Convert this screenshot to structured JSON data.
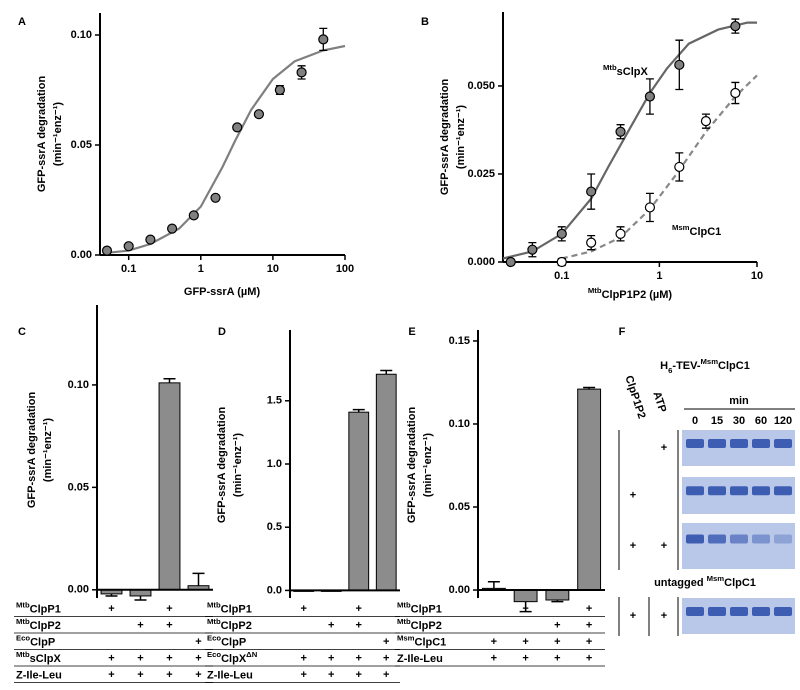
{
  "chart_data": [
    {
      "panel": "A",
      "type": "scatter",
      "xscale": "log",
      "xlabel": "GFP-ssrA (µM)",
      "ylabel": "GFP-ssrA degradation",
      "ylabel_units": "(min⁻¹enz⁻¹)",
      "xlim": [
        0.04,
        100
      ],
      "xticks": [
        0.1,
        1,
        10,
        100
      ],
      "ylim": [
        0,
        0.11
      ],
      "yticks": [
        {
          "value": 0,
          "label": "0.00"
        },
        {
          "value": 0.05,
          "label": "0.05"
        },
        {
          "value": 0.1,
          "label": "0.10"
        }
      ],
      "series": [
        {
          "color": "#808080",
          "x": [
            0.05,
            0.1,
            0.2,
            0.4,
            0.8,
            1.6,
            3.2,
            6.4,
            12.5,
            25,
            50
          ],
          "values": [
            0.002,
            0.004,
            0.007,
            0.012,
            0.018,
            0.026,
            0.058,
            0.064,
            0.075,
            0.083,
            0.098
          ],
          "errors": [
            0,
            0,
            0,
            0,
            0,
            0,
            0,
            0,
            0.002,
            0.003,
            0.005
          ],
          "fit": {
            "color": "#7f7f7f",
            "line_style": "solid",
            "x": [
              0.05,
              0.1,
              0.2,
              0.5,
              1,
              2,
              3,
              5,
              10,
              20,
              50,
              100
            ],
            "y": [
              0.001,
              0.002,
              0.005,
              0.012,
              0.022,
              0.04,
              0.052,
              0.066,
              0.08,
              0.088,
              0.093,
              0.095
            ]
          }
        }
      ]
    },
    {
      "panel": "B",
      "type": "scatter",
      "xscale": "log",
      "xlabel_super": "Mtb",
      "xlabel": "ClpP1P2 (µM)",
      "ylabel": "GFP-ssrA degradation",
      "ylabel_units": "(min⁻¹enz⁻¹)",
      "xlim": [
        0.025,
        10
      ],
      "xticks": [
        0.1,
        1,
        10
      ],
      "ylim": [
        0,
        0.071
      ],
      "yticks": [
        {
          "value": 0,
          "label": "0.000"
        },
        {
          "value": 0.025,
          "label": "0.025"
        },
        {
          "value": 0.05,
          "label": "0.050"
        }
      ],
      "series": [
        {
          "name_super": "Mtb",
          "name": "sClpX",
          "color": "#808080",
          "x": [
            0.03,
            0.05,
            0.1,
            0.2,
            0.4,
            0.8,
            1.6,
            6
          ],
          "values": [
            0,
            0.0035,
            0.008,
            0.02,
            0.037,
            0.047,
            0.056,
            0.067
          ],
          "errors": [
            0,
            0.002,
            0.002,
            0.005,
            0.002,
            0.005,
            0.007,
            0.002
          ],
          "fit": {
            "color": "#666666",
            "line_style": "solid",
            "x": [
              0.025,
              0.05,
              0.1,
              0.2,
              0.3,
              0.5,
              0.8,
              1.2,
              2,
              4,
              8,
              10
            ],
            "y": [
              0.001,
              0.003,
              0.008,
              0.018,
              0.027,
              0.038,
              0.048,
              0.055,
              0.062,
              0.066,
              0.068,
              0.068
            ]
          }
        },
        {
          "name_super": "Msm",
          "name": "ClpC1",
          "color": "#ffffff",
          "x": [
            0.1,
            0.2,
            0.4,
            0.8,
            1.6,
            3,
            6
          ],
          "values": [
            0,
            0.0055,
            0.008,
            0.0155,
            0.027,
            0.04,
            0.048
          ],
          "errors": [
            0.001,
            0.002,
            0.002,
            0.004,
            0.004,
            0.002,
            0.003
          ],
          "fit": {
            "color": "#888888",
            "line_style": "dashed",
            "x": [
              0.1,
              0.2,
              0.4,
              0.8,
              1.5,
              3,
              6,
              10
            ],
            "y": [
              0.001,
              0.003,
              0.007,
              0.015,
              0.025,
              0.037,
              0.047,
              0.053
            ]
          }
        }
      ]
    },
    {
      "panel": "C",
      "type": "bar",
      "color": "#8c8c8c",
      "ylabel": "GFP-ssrA degradation",
      "ylabel_units": "(min⁻¹enz⁻¹)",
      "ylim": [
        -0.004,
        0.139
      ],
      "yticks": [
        {
          "value": 0,
          "label": "0.00"
        },
        {
          "value": 0.05,
          "label": "0.05"
        },
        {
          "value": 0.1,
          "label": "0.10"
        }
      ],
      "values": [
        -0.002,
        -0.003,
        0.101,
        0.002
      ],
      "errors": [
        0.001,
        0.002,
        0.002,
        0.006
      ],
      "rows": [
        {
          "super": "Mtb",
          "label": "ClpP1",
          "cells": [
            "+",
            null,
            "+",
            null
          ]
        },
        {
          "super": "Mtb",
          "label": "ClpP2",
          "cells": [
            null,
            "+",
            "+",
            null
          ]
        },
        {
          "super": "Eco",
          "label": "ClpP",
          "cells": [
            null,
            null,
            null,
            "+"
          ]
        },
        {
          "super": "Mtb",
          "label": "sClpX",
          "cells": [
            "+",
            "+",
            "+",
            "+"
          ]
        },
        {
          "label": "Z-Ile-Leu",
          "cells": [
            "+",
            "+",
            "+",
            "+"
          ]
        }
      ]
    },
    {
      "panel": "D",
      "type": "bar",
      "color": "#8c8c8c",
      "ylabel": "GFP-ssrA degradation",
      "ylabel_units": "(min⁻¹enz⁻¹)",
      "ylim": [
        -0.06,
        2.06
      ],
      "yticks": [
        {
          "value": 0,
          "label": "0.0"
        },
        {
          "value": 0.5,
          "label": "0.5"
        },
        {
          "value": 1,
          "label": "1.0"
        },
        {
          "value": 1.5,
          "label": "1.5"
        }
      ],
      "values": [
        0,
        0,
        1.41,
        1.71
      ],
      "errors": [
        0,
        0,
        0.02,
        0.03
      ],
      "rows": [
        {
          "super": "Mtb",
          "label": "ClpP1",
          "cells": [
            "+",
            null,
            "+",
            null
          ]
        },
        {
          "super": "Mtb",
          "label": "ClpP2",
          "cells": [
            null,
            "+",
            "+",
            null
          ]
        },
        {
          "super": "Eco",
          "label": "ClpP",
          "cells": [
            null,
            null,
            null,
            "+"
          ]
        },
        {
          "super": "Eco",
          "label": "ClpX",
          "suffix_super": "ΔN",
          "cells": [
            "+",
            "+",
            "+",
            "+"
          ]
        },
        {
          "label": "Z-Ile-Leu",
          "cells": [
            "+",
            "+",
            "+",
            "+"
          ]
        }
      ]
    },
    {
      "panel": "E",
      "type": "bar",
      "color": "#8c8c8c",
      "ylabel": "GFP-ssrA degradation",
      "ylabel_units": "(min⁻¹enz⁻¹)",
      "ylim": [
        -0.0048,
        0.1566
      ],
      "yticks": [
        {
          "value": 0,
          "label": "0.00"
        },
        {
          "value": 0.05,
          "label": "0.05"
        },
        {
          "value": 0.1,
          "label": "0.10"
        },
        {
          "value": 0.15,
          "label": "0.15"
        }
      ],
      "values": [
        0.001,
        -0.007,
        -0.006,
        0.121
      ],
      "errors": [
        0.004,
        0.006,
        0.001,
        0.001
      ],
      "rows": [
        {
          "super": "Mtb",
          "label": "ClpP1",
          "cells": [
            null,
            "+",
            null,
            "+"
          ]
        },
        {
          "super": "Mtb",
          "label": "ClpP2",
          "cells": [
            null,
            null,
            "+",
            "+"
          ]
        },
        {
          "super": "Msm",
          "label": "ClpC1",
          "cells": [
            "+",
            "+",
            "+",
            "+"
          ]
        },
        {
          "label": "Z-Ile-Leu",
          "cells": [
            "+",
            "+",
            "+",
            "+"
          ]
        }
      ]
    }
  ],
  "panel_f": {
    "panel": "F",
    "title": {
      "prefix": "H",
      "sub": "6",
      "mid": "-TEV-",
      "super": "Msm",
      "label": "ClpC1"
    },
    "headers": [
      "ClpP1P2",
      "ATP"
    ],
    "time_label": "min",
    "times": [
      0,
      15,
      30,
      60,
      120
    ],
    "rows": [
      [
        null,
        "+"
      ],
      [
        "+",
        null
      ],
      [
        "+",
        "+"
      ]
    ],
    "untagged": {
      "prefix": "untagged ",
      "super": "Msm",
      "label": "ClpC1"
    },
    "untagged_row": [
      "+",
      "+"
    ]
  }
}
